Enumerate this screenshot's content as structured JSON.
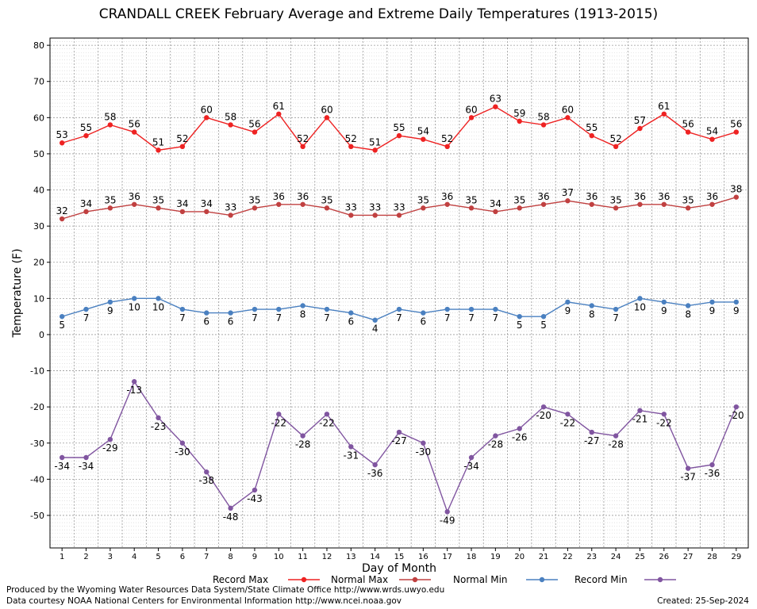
{
  "chart_data": {
    "type": "line",
    "title": "CRANDALL CREEK February Average and Extreme Daily Temperatures (1913-2015)",
    "xlabel": "Day of Month",
    "ylabel": "Temperature (F)",
    "x": [
      1,
      2,
      3,
      4,
      5,
      6,
      7,
      8,
      9,
      10,
      11,
      12,
      13,
      14,
      15,
      16,
      17,
      18,
      19,
      20,
      21,
      22,
      23,
      24,
      25,
      26,
      27,
      28,
      29
    ],
    "ylim": [
      -59,
      82
    ],
    "yticks": [
      -50,
      -40,
      -30,
      -20,
      -10,
      0,
      10,
      20,
      30,
      40,
      50,
      60,
      70,
      80
    ],
    "grid": true,
    "legend_position": "bottom",
    "series": [
      {
        "name": "Record Max",
        "color": "#ee2222",
        "values": [
          53,
          55,
          58,
          56,
          51,
          52,
          60,
          58,
          56,
          61,
          52,
          60,
          52,
          51,
          55,
          54,
          52,
          60,
          63,
          59,
          58,
          60,
          55,
          52,
          57,
          61,
          56,
          54,
          56
        ]
      },
      {
        "name": "Normal Max",
        "color": "#c04040",
        "values": [
          32,
          34,
          35,
          36,
          35,
          34,
          34,
          33,
          35,
          36,
          36,
          35,
          33,
          33,
          33,
          35,
          36,
          35,
          34,
          35,
          36,
          37,
          36,
          35,
          36,
          36,
          35,
          36,
          38
        ]
      },
      {
        "name": "Normal Min",
        "color": "#4a80c0",
        "values": [
          5,
          7,
          9,
          10,
          10,
          7,
          6,
          6,
          7,
          7,
          8,
          7,
          6,
          4,
          7,
          6,
          7,
          7,
          7,
          5,
          5,
          9,
          8,
          7,
          10,
          9,
          8,
          9,
          9
        ]
      },
      {
        "name": "Record Min",
        "color": "#8055a0",
        "values": [
          -34,
          -34,
          -29,
          -13,
          -23,
          -30,
          -38,
          -48,
          -43,
          -22,
          -28,
          -22,
          -31,
          -36,
          -27,
          -30,
          -49,
          -34,
          -28,
          -26,
          -20,
          -22,
          -27,
          -28,
          -21,
          -22,
          -37,
          -36,
          -20
        ]
      }
    ]
  },
  "footer": {
    "produced_by": "Produced by the Wyoming Water Resources Data System/State Climate Office http://www.wrds.uwyo.edu",
    "courtesy": "Data courtesy NOAA National Centers for Environmental Information http://www.ncei.noaa.gov",
    "created": "Created: 25-Sep-2024"
  }
}
